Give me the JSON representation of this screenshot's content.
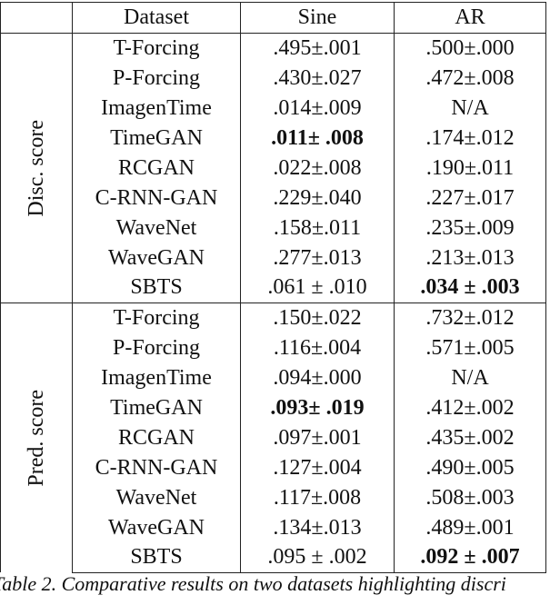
{
  "table": {
    "header": [
      "Dataset",
      "Sine",
      "AR"
    ],
    "groups": [
      {
        "label": "Disc. score",
        "rows": [
          [
            "T-Forcing",
            ".495±.001",
            ".500±.000"
          ],
          [
            "P-Forcing",
            ".430±.027",
            ".472±.008"
          ],
          [
            "ImagenTime",
            ".014±.009",
            "N/A"
          ],
          [
            "TimeGAN",
            {
              "text": ".011± .008",
              "bold": true
            },
            ".174±.012"
          ],
          [
            "RCGAN",
            ".022±.008",
            ".190±.011"
          ],
          [
            "C-RNN-GAN",
            ".229±.040",
            ".227±.017"
          ],
          [
            "WaveNet",
            ".158±.011",
            ".235±.009"
          ],
          [
            "WaveGAN",
            ".277±.013",
            ".213±.013"
          ],
          [
            "SBTS",
            ".061 ± .010",
            {
              "text": ".034 ± .003",
              "bold": true
            }
          ]
        ]
      },
      {
        "label": "Pred. score",
        "rows": [
          [
            "T-Forcing",
            ".150±.022",
            ".732±.012"
          ],
          [
            "P-Forcing",
            ".116±.004",
            ".571±.005"
          ],
          [
            "ImagenTime",
            ".094±.000",
            "N/A"
          ],
          [
            "TimeGAN",
            {
              "text": ".093± .019",
              "bold": true
            },
            ".412±.002"
          ],
          [
            "RCGAN",
            ".097±.001",
            ".435±.002"
          ],
          [
            "C-RNN-GAN",
            ".127±.004",
            ".490±.005"
          ],
          [
            "WaveNet",
            ".117±.008",
            ".508±.003"
          ],
          [
            "WaveGAN",
            ".134±.013",
            ".489±.001"
          ],
          [
            "SBTS",
            ".095 ± .002",
            {
              "text": ".092 ± .007",
              "bold": true
            }
          ]
        ]
      }
    ]
  },
  "caption": "Table 2. Comparative results on two datasets highlighting discri"
}
